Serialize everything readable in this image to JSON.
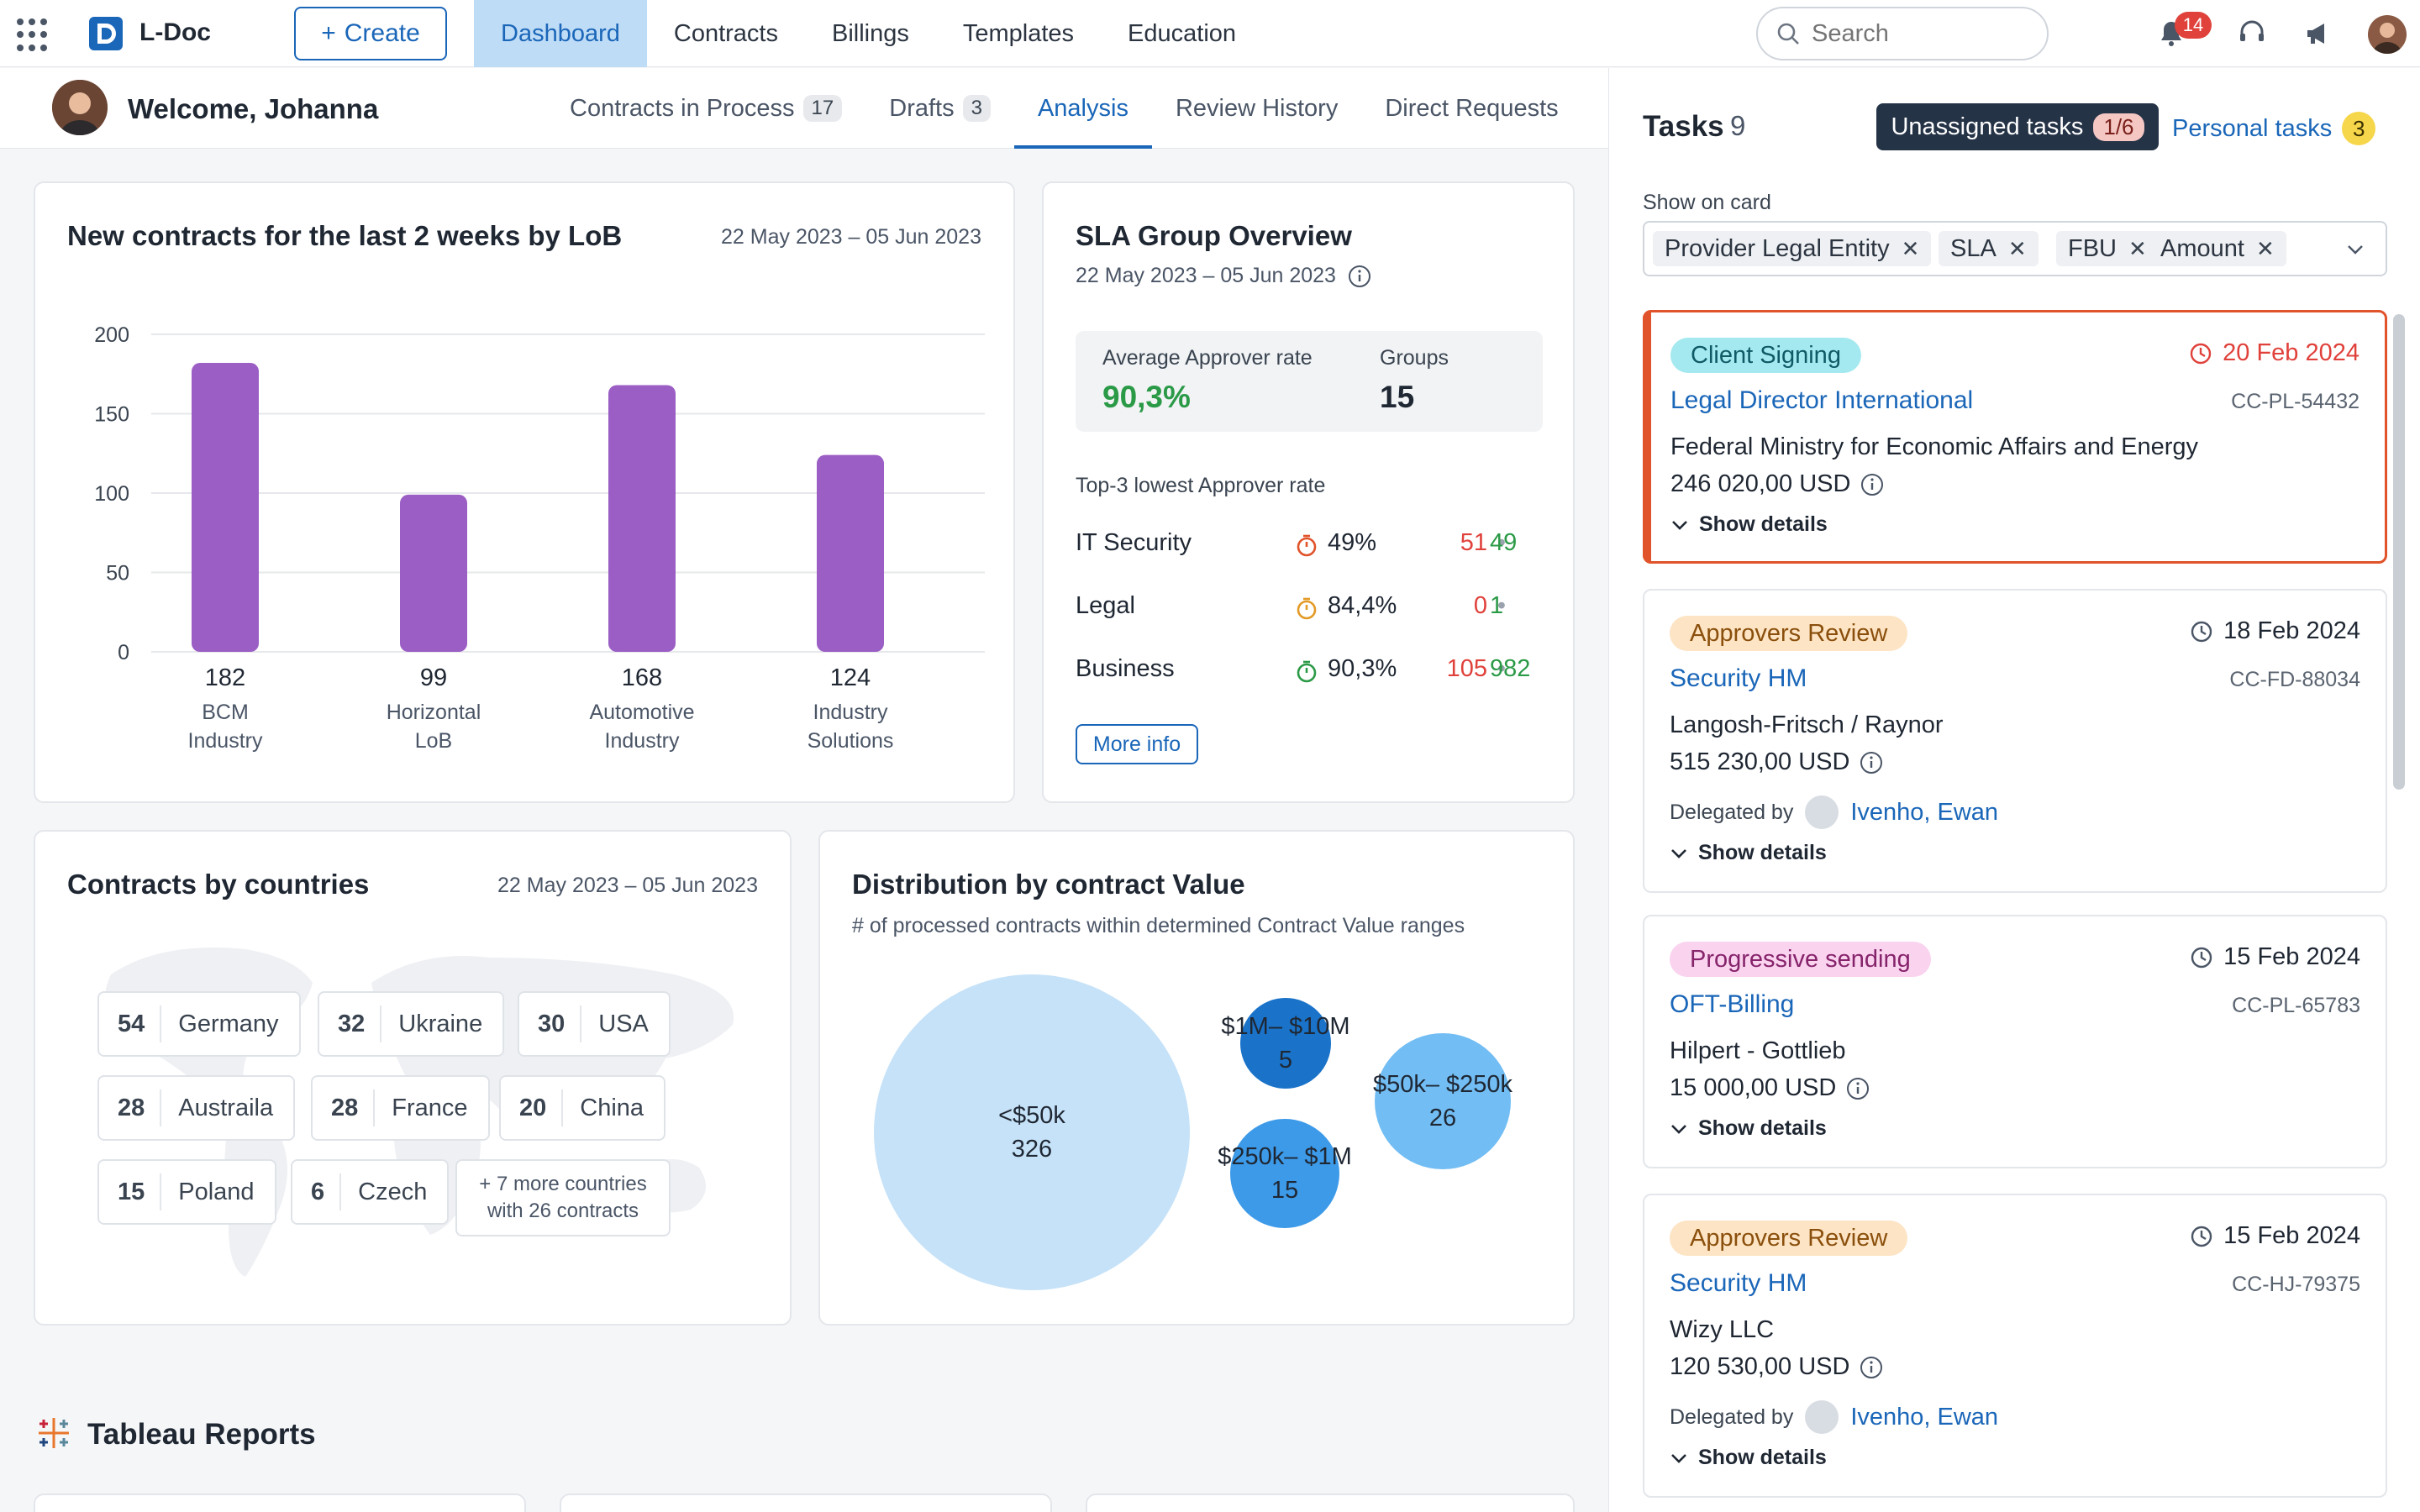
{
  "app": {
    "name": "L-Doc",
    "create_label": "Create"
  },
  "nav": [
    {
      "label": "Dashboard",
      "active": true
    },
    {
      "label": "Contracts",
      "active": false
    },
    {
      "label": "Billings",
      "active": false
    },
    {
      "label": "Templates",
      "active": false
    },
    {
      "label": "Education",
      "active": false
    }
  ],
  "search": {
    "placeholder": "Search"
  },
  "notifications": {
    "count": "14"
  },
  "welcome": "Welcome, Johanna",
  "tabs": [
    {
      "label": "Contracts in Process",
      "count": "17"
    },
    {
      "label": "Drafts",
      "count": "3"
    },
    {
      "label": "Analysis",
      "count": null,
      "active": true
    },
    {
      "label": "Review History",
      "count": null
    },
    {
      "label": "Direct Requests",
      "count": null
    }
  ],
  "new_contracts": {
    "title": "New contracts for the last 2 weeks by LoB",
    "date": "22 May 2023 – 05 Jun 2023"
  },
  "chart_data": {
    "type": "bar",
    "categories": [
      "BCM Industry",
      "Horizontal LoB",
      "Automotive Industry",
      "Industry Solutions"
    ],
    "category_lines": [
      [
        "BCM",
        "Industry"
      ],
      [
        "Horizontal",
        "LoB"
      ],
      [
        "Automotive",
        "Industry"
      ],
      [
        "Industry",
        "Solutions"
      ]
    ],
    "values": [
      182,
      99,
      168,
      124
    ],
    "yticks": [
      0,
      50,
      100,
      150,
      200
    ],
    "ylim": [
      0,
      200
    ],
    "grid": true,
    "color": "#9b5ec4"
  },
  "sla": {
    "title": "SLA Group Overview",
    "date": "22 May 2023 – 05 Jun 2023",
    "avg_label": "Average Approver rate",
    "avg_value": "90,3%",
    "groups_label": "Groups",
    "groups_value": "15",
    "top3_label": "Top-3 lowest Approver rate",
    "rows": [
      {
        "name": "IT Security",
        "rate": "49%",
        "red": "51",
        "green": "49",
        "timer_color": "#e0532b"
      },
      {
        "name": "Legal",
        "rate": "84,4%",
        "red": "0",
        "green": "1",
        "timer_color": "#e39a26"
      },
      {
        "name": "Business",
        "rate": "90,3%",
        "red": "105",
        "green": "982",
        "timer_color": "#2b9a47"
      }
    ],
    "more_label": "More info"
  },
  "countries": {
    "title": "Contracts by countries",
    "date": "22 May 2023 – 05 Jun 2023",
    "items": [
      {
        "num": "54",
        "name": "Germany"
      },
      {
        "num": "32",
        "name": "Ukraine"
      },
      {
        "num": "30",
        "name": "USA"
      },
      {
        "num": "28",
        "name": "Austraila"
      },
      {
        "num": "28",
        "name": "France"
      },
      {
        "num": "20",
        "name": "China"
      },
      {
        "num": "15",
        "name": "Poland"
      },
      {
        "num": "6",
        "name": "Czech"
      }
    ],
    "more_line1": "+ 7 more countries",
    "more_line2": "with 26 contracts"
  },
  "distribution": {
    "title": "Distribution by contract Value",
    "subtitle": "# of processed contracts within determined Contract Value ranges",
    "bubbles": [
      {
        "label": "<$50k",
        "value": "326",
        "color": "#c6e2f8"
      },
      {
        "label": "$1M– $10M",
        "value": "5",
        "color": "#1a73c9"
      },
      {
        "label": "$50k– $250k",
        "value": "26",
        "color": "#72bdf3"
      },
      {
        "label": "$250k– $1M",
        "value": "15",
        "color": "#3d9ae8"
      }
    ]
  },
  "tableau": {
    "title": "Tableau Reports"
  },
  "tasks": {
    "title": "Tasks",
    "count": "9",
    "unassigned_label": "Unassigned tasks",
    "unassigned_count": "1/6",
    "personal_label": "Personal tasks",
    "personal_count": "3",
    "show_on_card": "Show on card",
    "chips": [
      "Provider Legal Entity",
      "SLA",
      "FBU",
      "Amount"
    ],
    "details_label": "Show details",
    "delegated_label": "Delegated by",
    "items": [
      {
        "status": "Client Signing",
        "status_bg": "#a4e9ef",
        "status_fg": "#0f5a66",
        "due": "20 Feb 2024",
        "overdue": true,
        "link": "Legal Director International",
        "code": "CC-PL-54432",
        "org": "Federal Ministry for Economic Affairs and Energy",
        "amount": "246 020,00 USD",
        "delegated_by": null
      },
      {
        "status": "Approvers Review",
        "status_bg": "#fde4c4",
        "status_fg": "#8a4f0c",
        "due": "18 Feb 2024",
        "overdue": false,
        "link": "Security HM",
        "code": "CC-FD-88034",
        "org": "Langosh-Fritsch / Raynor",
        "amount": "515 230,00 USD",
        "delegated_by": "Ivenho, Ewan"
      },
      {
        "status": "Progressive sending",
        "status_bg": "#fad3ef",
        "status_fg": "#86246b",
        "due": "15 Feb 2024",
        "overdue": false,
        "link": "OFT-Billing",
        "code": "CC-PL-65783",
        "org": "Hilpert - Gottlieb",
        "amount": "15 000,00 USD",
        "delegated_by": null
      },
      {
        "status": "Approvers Review",
        "status_bg": "#fde4c4",
        "status_fg": "#8a4f0c",
        "due": "15 Feb 2024",
        "overdue": false,
        "link": "Security HM",
        "code": "CC-HJ-79375",
        "org": "Wizy LLC",
        "amount": "120 530,00 USD",
        "delegated_by": "Ivenho, Ewan"
      }
    ]
  }
}
